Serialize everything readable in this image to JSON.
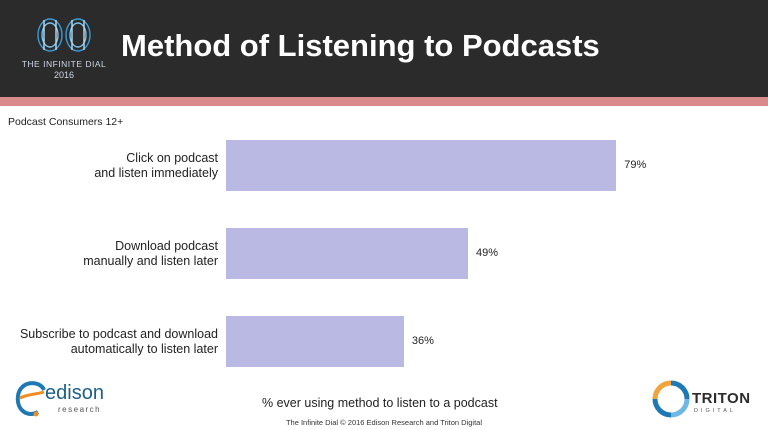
{
  "header": {
    "logo_line1": "THE INFINITE DIAL",
    "logo_line2": "2016",
    "title": "Method of Listening to Podcasts",
    "accent_color": "#2b2b2b",
    "stripe_color": "#d98b8b"
  },
  "subtitle": "Podcast Consumers 12+",
  "chart_data": {
    "type": "bar",
    "orientation": "horizontal",
    "categories": [
      [
        "Click on podcast",
        "and listen immediately"
      ],
      [
        "Download podcast",
        "manually and listen later"
      ],
      [
        "Subscribe to podcast and download",
        "automatically to listen later"
      ]
    ],
    "values": [
      79,
      49,
      36
    ],
    "value_labels": [
      "79%",
      "49%",
      "36%"
    ],
    "xlabel": "% ever using method to listen to a podcast",
    "xlim": [
      0,
      100
    ],
    "bar_color": "#b9b9e3",
    "grid": false
  },
  "logos": {
    "left_word": "edison",
    "left_sub": "research",
    "right_word": "TRITON",
    "right_sub": "DIGITAL"
  },
  "footer": "The Infinite Dial  © 2016 Edison Research and Triton Digital"
}
